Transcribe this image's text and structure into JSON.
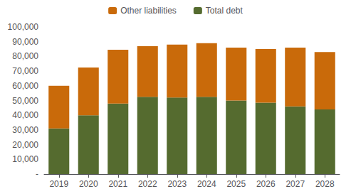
{
  "chart_data": {
    "type": "bar",
    "stacked": true,
    "categories": [
      "2019",
      "2020",
      "2021",
      "2022",
      "2023",
      "2024",
      "2025",
      "2026",
      "2027",
      "2028"
    ],
    "series": [
      {
        "name": "Total debt",
        "color": "#556B2F",
        "values": [
          31000,
          40000,
          48000,
          52500,
          52000,
          52500,
          50000,
          48500,
          46000,
          44000
        ]
      },
      {
        "name": "Other liabilities",
        "color": "#C96A0A",
        "values": [
          29000,
          32500,
          36500,
          34500,
          36000,
          36500,
          36000,
          36500,
          40000,
          39000
        ]
      }
    ],
    "ylim": [
      0,
      100000
    ],
    "yticks": [
      {
        "value": 0,
        "label": "-"
      },
      {
        "value": 10000,
        "label": "10,000"
      },
      {
        "value": 20000,
        "label": "20,000"
      },
      {
        "value": 30000,
        "label": "30,000"
      },
      {
        "value": 40000,
        "label": "40,000"
      },
      {
        "value": 50000,
        "label": "50,000"
      },
      {
        "value": 60000,
        "label": "60,000"
      },
      {
        "value": 70000,
        "label": "70,000"
      },
      {
        "value": 80000,
        "label": "80,000"
      },
      {
        "value": 90000,
        "label": "90,000"
      },
      {
        "value": 100000,
        "label": "100,000"
      }
    ],
    "grid": false,
    "legend": "top"
  }
}
